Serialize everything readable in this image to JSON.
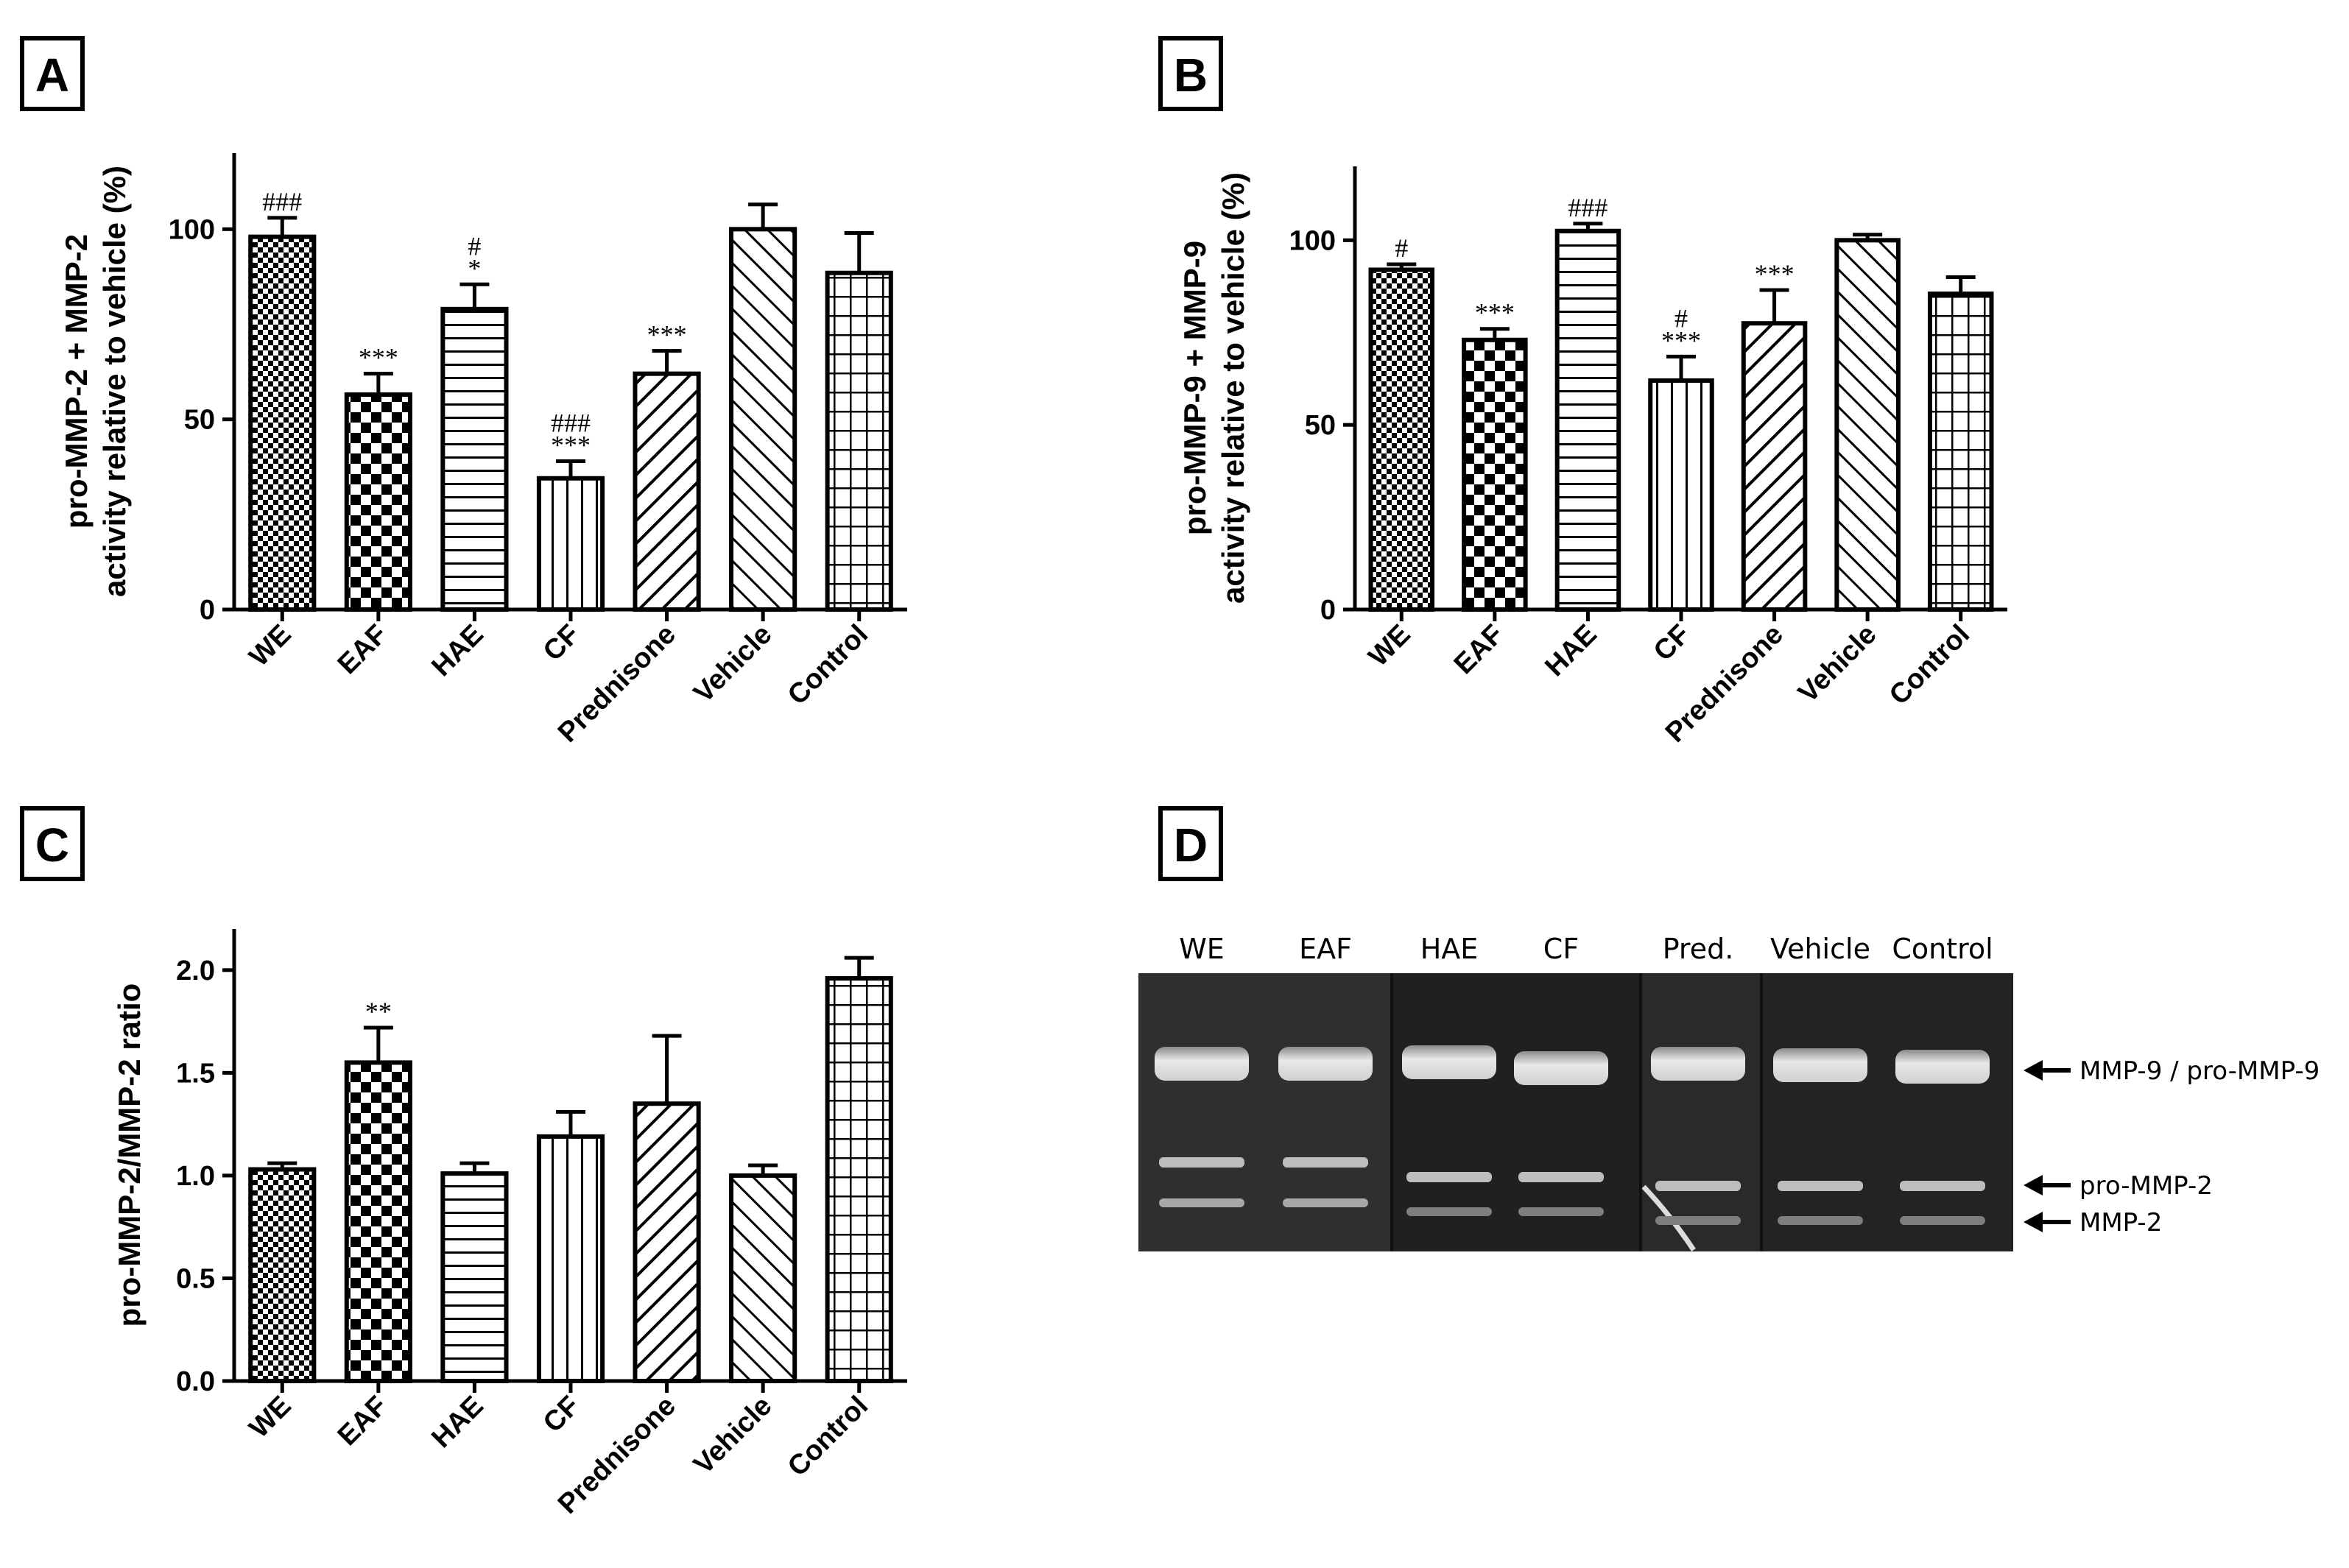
{
  "panels": {
    "A": "A",
    "B": "B",
    "C": "C",
    "D": "D"
  },
  "chart_data": [
    {
      "panel": "A",
      "type": "bar",
      "categories": [
        "WE",
        "EAF",
        "HAE",
        "CF",
        "Prednisone",
        "Vehicle",
        "Control"
      ],
      "values": [
        98,
        56.5,
        79,
        34.5,
        62,
        100,
        88.5
      ],
      "errors": [
        5,
        5.5,
        6.5,
        4.5,
        6,
        6.5,
        10.5
      ],
      "annotations": [
        [
          "###"
        ],
        [
          "***"
        ],
        [
          "*",
          "#"
        ],
        [
          "***",
          "###"
        ],
        [
          "***"
        ],
        [],
        []
      ],
      "ylabel_lines": [
        "pro-MMP-2 + MMP-2",
        "activity relative to vehicle (%)"
      ],
      "ylim": [
        0,
        120
      ],
      "yticks": [
        0,
        50,
        100
      ],
      "patterns": [
        "checker-fine",
        "checker",
        "hlines",
        "vlines",
        "diag-right",
        "diag-left",
        "grid"
      ],
      "grid": false
    },
    {
      "panel": "B",
      "type": "bar",
      "categories": [
        "WE",
        "EAF",
        "HAE",
        "CF",
        "Prednisone",
        "Vehicle",
        "Control"
      ],
      "values": [
        92,
        73,
        102.5,
        62,
        77.5,
        100,
        85.5
      ],
      "errors": [
        1.5,
        3,
        2,
        6.5,
        9,
        1.5,
        4.5
      ],
      "annotations": [
        [
          "#"
        ],
        [
          "***"
        ],
        [
          "###"
        ],
        [
          "***",
          "#"
        ],
        [
          "***"
        ],
        [],
        []
      ],
      "ylabel_lines": [
        "pro-MMP-9 + MMP-9",
        "activity relative to vehicle (%)"
      ],
      "ylim": [
        0,
        120
      ],
      "yticks": [
        0,
        50,
        100
      ],
      "patterns": [
        "checker-fine",
        "checker",
        "hlines",
        "vlines",
        "diag-right",
        "diag-left",
        "grid"
      ],
      "grid": false
    },
    {
      "panel": "C",
      "type": "bar",
      "categories": [
        "WE",
        "EAF",
        "HAE",
        "CF",
        "Prednisone",
        "Vehicle",
        "Control"
      ],
      "values": [
        1.03,
        1.55,
        1.01,
        1.19,
        1.35,
        1.0,
        1.96
      ],
      "errors": [
        0.03,
        0.17,
        0.05,
        0.12,
        0.33,
        0.05,
        0.1
      ],
      "annotations": [
        [],
        [
          "**"
        ],
        [],
        [],
        [],
        [],
        []
      ],
      "ylabel_lines": [
        "pro-MMP-2/MMP-2 ratio"
      ],
      "ylim": [
        0,
        2.2
      ],
      "yticks": [
        0.0,
        0.5,
        1.0,
        1.5,
        2.0
      ],
      "ytick_labels": [
        "0.0",
        "0.5",
        "1.0",
        "1.5",
        "2.0"
      ],
      "patterns": [
        "checker-fine",
        "checker",
        "hlines",
        "vlines",
        "diag-right",
        "diag-left",
        "grid"
      ],
      "grid": false
    }
  ],
  "gel": {
    "lanes": [
      "WE",
      "EAF",
      "HAE",
      "CF",
      "Pred.",
      "Vehicle",
      "Control"
    ],
    "band_labels": [
      "MMP-9 / pro-MMP-9",
      "pro-MMP-2",
      "MMP-2"
    ]
  }
}
